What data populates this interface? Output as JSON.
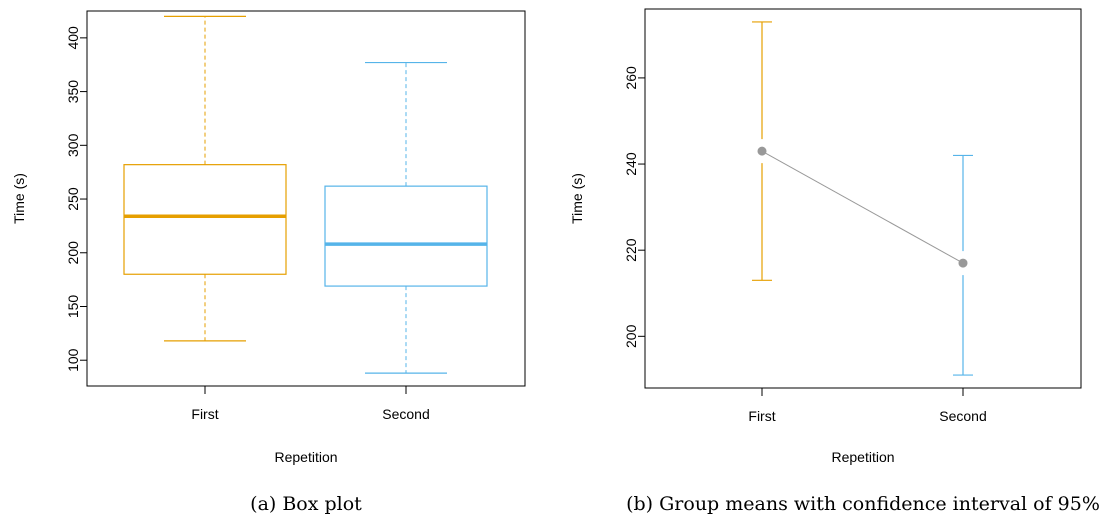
{
  "colors": {
    "first": "#E69F00",
    "second": "#56B4E9",
    "mean_line": "#999999",
    "mean_point": "#999999"
  },
  "chart_data": [
    {
      "type": "box",
      "caption": "(a) Box plot",
      "xlabel": "Repetition",
      "ylabel": "Time (s)",
      "categories": [
        "First",
        "Second"
      ],
      "ylim": [
        76,
        425
      ],
      "yticks": [
        100,
        150,
        200,
        250,
        300,
        350,
        400
      ],
      "boxes": [
        {
          "name": "First",
          "color_key": "first",
          "min": 118,
          "q1": 180,
          "median": 234,
          "q3": 282,
          "max": 420
        },
        {
          "name": "Second",
          "color_key": "second",
          "min": 88,
          "q1": 169,
          "median": 208,
          "q3": 262,
          "max": 377
        }
      ]
    },
    {
      "type": "errorbar",
      "caption": "(b) Group means with confidence interval of 95%",
      "xlabel": "Repetition",
      "ylabel": "Time (s)",
      "categories": [
        "First",
        "Second"
      ],
      "ylim": [
        188,
        276
      ],
      "yticks": [
        200,
        220,
        240,
        260
      ],
      "groups": [
        {
          "name": "First",
          "color_key": "first",
          "mean": 243,
          "lower": 213,
          "upper": 273
        },
        {
          "name": "Second",
          "color_key": "second",
          "mean": 217,
          "lower": 191,
          "upper": 242
        }
      ]
    }
  ]
}
